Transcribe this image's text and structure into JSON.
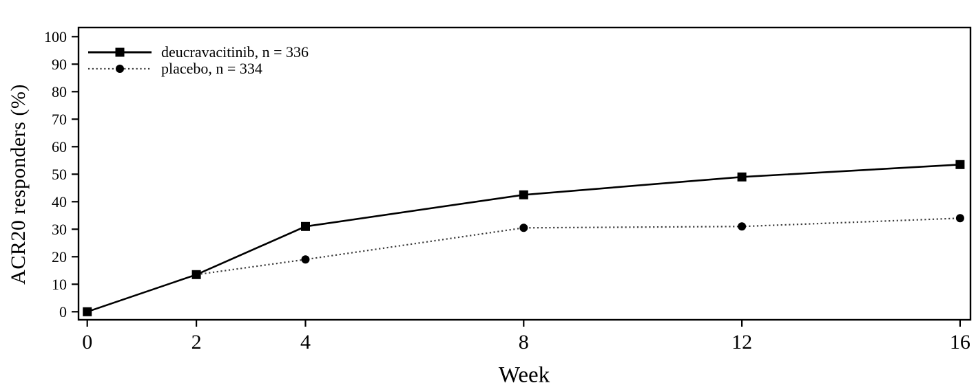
{
  "figure": {
    "background_color": "#ffffff",
    "foreground_color": "#000000"
  },
  "chart_data": {
    "type": "line",
    "x": [
      0,
      2,
      4,
      8,
      12,
      16
    ],
    "series": [
      {
        "name": "deucravacitinib, n = 336",
        "marker": "square",
        "line_style": "solid",
        "color": "#000000",
        "values": [
          0,
          13.5,
          31,
          42.5,
          49,
          53.5
        ]
      },
      {
        "name": "placebo, n = 334",
        "marker": "circle",
        "line_style": "dotted",
        "color": "#3c3c3c",
        "values": [
          0,
          13.5,
          19,
          30.5,
          31,
          34
        ]
      }
    ],
    "xlabel": "Week",
    "ylabel": "ACR20 responders (%)",
    "x_ticks": [
      0,
      2,
      4,
      8,
      12,
      16
    ],
    "y_ticks": [
      0,
      10,
      20,
      30,
      40,
      50,
      60,
      70,
      80,
      90,
      100
    ],
    "xlim": [
      0,
      16
    ],
    "ylim": [
      0,
      100
    ],
    "grid": false,
    "frame": "full-box",
    "legend_position": "top-left-inside"
  }
}
